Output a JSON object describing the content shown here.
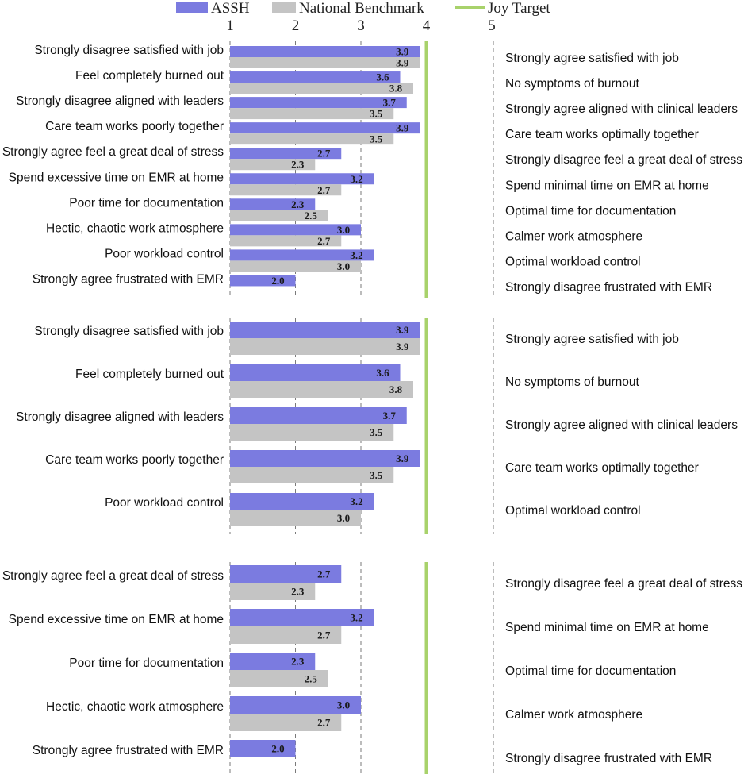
{
  "colors": {
    "assh": "#7B7BE0",
    "benchmark": "#C4C4C4",
    "target": "#A8D26B"
  },
  "chart_data": {
    "type": "bar",
    "orientation": "horizontal",
    "legend": {
      "position": "top",
      "entries": [
        "ASSH",
        "National Benchmark",
        "Joy Target"
      ]
    },
    "x_ticks": [
      "1",
      "2",
      "3",
      "4",
      "5"
    ],
    "xlim": [
      1,
      5
    ],
    "target_value": 4.0,
    "panels": [
      {
        "categories": [
          "Strongly disagree satisfied with job",
          "Feel completely burned out",
          "Strongly disagree aligned with leaders",
          "Care team works poorly together",
          "Strongly agree feel a great deal of stress",
          "Spend excessive time on EMR at home",
          "Poor time for documentation",
          "Hectic, chaotic work atmosphere",
          "Poor workload control",
          "Strongly agree frustrated with EMR"
        ],
        "right_labels": [
          "Strongly agree satisfied with job",
          "No symptoms of burnout",
          "Strongly agree aligned with clinical leaders",
          "Care team works optimally together",
          "Strongly disagree feel a great deal of stress",
          "Spend minimal time on EMR at home",
          "Optimal time for documentation",
          "Calmer work atmosphere",
          "Optimal workload control",
          "Strongly disagree frustrated with EMR"
        ],
        "series": [
          {
            "name": "ASSH",
            "values": [
              3.9,
              3.6,
              3.7,
              3.9,
              2.7,
              3.2,
              2.3,
              3.0,
              3.2,
              2.0
            ],
            "labels": [
              "3.9",
              "3.6",
              "3.7",
              "3.9",
              "2.7",
              "3.2",
              "2.3",
              "3.0",
              "3.2",
              "2.0"
            ]
          },
          {
            "name": "National Benchmark",
            "values": [
              3.9,
              3.8,
              3.5,
              3.5,
              2.3,
              2.7,
              2.5,
              2.7,
              3.0,
              null
            ],
            "labels": [
              "3.9",
              "3.8",
              "3.5",
              "3.5",
              "2.3",
              "2.7",
              "2.5",
              "2.7",
              "3.0",
              null
            ]
          }
        ]
      },
      {
        "categories": [
          "Strongly disagree satisfied with job",
          "Feel completely burned out",
          "Strongly disagree aligned with leaders",
          "Care team works poorly together",
          "Poor workload control"
        ],
        "right_labels": [
          "Strongly agree satisfied with job",
          "No symptoms of burnout",
          "Strongly agree aligned with clinical leaders",
          "Care team works optimally together",
          "Optimal workload control"
        ],
        "series": [
          {
            "name": "ASSH",
            "values": [
              3.9,
              3.6,
              3.7,
              3.9,
              3.2
            ],
            "labels": [
              "3.9",
              "3.6",
              "3.7",
              "3.9",
              "3.2"
            ]
          },
          {
            "name": "National Benchmark",
            "values": [
              3.9,
              3.8,
              3.5,
              3.5,
              3.0
            ],
            "labels": [
              "3.9",
              "3.8",
              "3.5",
              "3.5",
              "3.0"
            ]
          }
        ]
      },
      {
        "categories": [
          "Strongly agree feel a great deal of stress",
          "Spend excessive time on EMR at home",
          "Poor time for documentation",
          "Hectic, chaotic work atmosphere",
          "Strongly agree frustrated with EMR"
        ],
        "right_labels": [
          "Strongly disagree feel a great deal of stress",
          "Spend minimal time on EMR at home",
          "Optimal time for documentation",
          "Calmer work atmosphere",
          "Strongly disagree frustrated with EMR"
        ],
        "series": [
          {
            "name": "ASSH",
            "values": [
              2.7,
              3.2,
              2.3,
              3.0,
              2.0
            ],
            "labels": [
              "2.7",
              "3.2",
              "2.3",
              "3.0",
              "2.0"
            ]
          },
          {
            "name": "National Benchmark",
            "values": [
              2.3,
              2.7,
              2.5,
              2.7,
              null
            ],
            "labels": [
              "2.3",
              "2.7",
              "2.5",
              "2.7",
              null
            ]
          }
        ]
      }
    ]
  }
}
